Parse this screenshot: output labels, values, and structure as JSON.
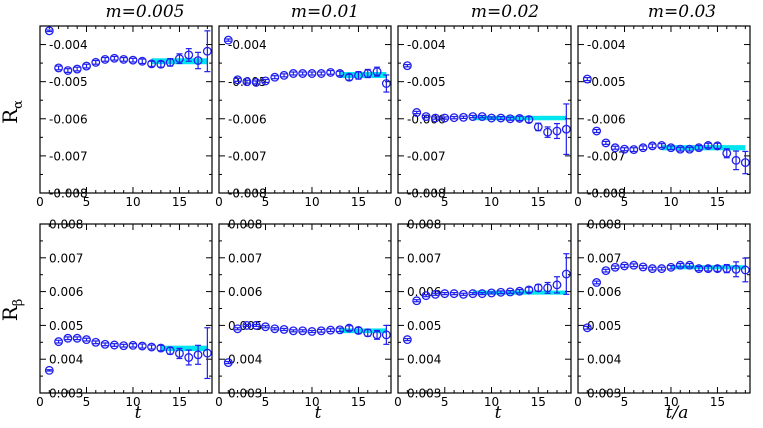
{
  "figure": {
    "column_titles": [
      "m=0.005",
      "m=0.01",
      "m=0.02",
      "m=0.03"
    ],
    "x_labels": [
      "t",
      "t",
      "t",
      "t/a"
    ],
    "row_labels": [
      {
        "main": "R",
        "sub": "α"
      },
      {
        "main": "R",
        "sub": "β"
      }
    ]
  },
  "chart_data": [
    {
      "type": "scatter",
      "row": 0,
      "col": 0,
      "title": "m=0.005",
      "xlabel": "",
      "ylabel": "Rα",
      "xlim": [
        0,
        18.5
      ],
      "ylim": [
        -0.008,
        -0.0035
      ],
      "xticks": [
        0,
        5,
        10,
        15
      ],
      "xtick_labels": [
        "0",
        "5",
        "10",
        "15"
      ],
      "yticks": [
        -0.008,
        -0.007,
        -0.006,
        -0.005,
        -0.004
      ],
      "ytick_labels": [
        "-0.008",
        "-0.007",
        "-0.006",
        "-0.005",
        "-0.004"
      ],
      "points": [
        [
          1,
          -0.00363
        ],
        [
          2,
          -0.00463
        ],
        [
          3,
          -0.0047
        ],
        [
          4,
          -0.00466
        ],
        [
          5,
          -0.00458
        ],
        [
          6,
          -0.00448
        ],
        [
          7,
          -0.0044
        ],
        [
          8,
          -0.00437
        ],
        [
          9,
          -0.0044
        ],
        [
          10,
          -0.00442
        ],
        [
          11,
          -0.00445
        ],
        [
          12,
          -0.00452
        ],
        [
          13,
          -0.00453
        ],
        [
          14,
          -0.00448
        ],
        [
          15,
          -0.00438
        ],
        [
          16,
          -0.00428
        ],
        [
          17,
          -0.00443
        ],
        [
          18,
          -0.00418
        ]
      ],
      "errors": [
        2e-05,
        5e-05,
        5e-05,
        5e-05,
        5e-05,
        5e-05,
        5e-05,
        5e-05,
        5e-05,
        5e-05,
        6e-05,
        7e-05,
        8e-05,
        0.0001,
        0.00013,
        0.00017,
        0.00022,
        0.00055
      ],
      "fit": {
        "x": [
          12,
          18
        ],
        "center": -0.00445,
        "half_width": 8e-05
      }
    },
    {
      "type": "scatter",
      "row": 0,
      "col": 1,
      "title": "m=0.01",
      "xlabel": "",
      "ylabel": "",
      "xlim": [
        0,
        18.5
      ],
      "ylim": [
        -0.008,
        -0.0035
      ],
      "xticks": [
        0,
        5,
        10,
        15
      ],
      "xtick_labels": [
        "0",
        "5",
        "10",
        "15"
      ],
      "yticks": [
        -0.008,
        -0.007,
        -0.006,
        -0.005,
        -0.004
      ],
      "ytick_labels": [
        "-0.008",
        "-0.007",
        "-0.006",
        "-0.005",
        "-0.004"
      ],
      "points": [
        [
          1,
          -0.00388
        ],
        [
          2,
          -0.00495
        ],
        [
          3,
          -0.005
        ],
        [
          4,
          -0.00502
        ],
        [
          5,
          -0.00498
        ],
        [
          6,
          -0.00488
        ],
        [
          7,
          -0.00483
        ],
        [
          8,
          -0.00478
        ],
        [
          9,
          -0.00478
        ],
        [
          10,
          -0.00478
        ],
        [
          11,
          -0.00478
        ],
        [
          12,
          -0.00475
        ],
        [
          13,
          -0.00478
        ],
        [
          14,
          -0.00488
        ],
        [
          15,
          -0.00483
        ],
        [
          16,
          -0.00478
        ],
        [
          17,
          -0.00473
        ],
        [
          18,
          -0.00505
        ]
      ],
      "errors": [
        3e-05,
        4e-05,
        4e-05,
        4e-05,
        4e-05,
        4e-05,
        4e-05,
        4e-05,
        4e-05,
        4e-05,
        4e-05,
        5e-05,
        6e-05,
        8e-05,
        0.0001,
        0.00011,
        0.00012,
        0.00023
      ],
      "fit": {
        "x": [
          13,
          18
        ],
        "center": -0.00482,
        "half_width": 8e-05
      }
    },
    {
      "type": "scatter",
      "row": 0,
      "col": 2,
      "title": "m=0.02",
      "xlabel": "",
      "ylabel": "",
      "xlim": [
        0,
        18.5
      ],
      "ylim": [
        -0.008,
        -0.0035
      ],
      "xticks": [
        0,
        5,
        10,
        15
      ],
      "xtick_labels": [
        "0",
        "5",
        "10",
        "15"
      ],
      "yticks": [
        -0.008,
        -0.007,
        -0.006,
        -0.005,
        -0.004
      ],
      "ytick_labels": [
        "-0.008",
        "-0.007",
        "-0.006",
        "-0.005",
        "-0.004"
      ],
      "points": [
        [
          1,
          -0.00457
        ],
        [
          2,
          -0.00583
        ],
        [
          3,
          -0.00594
        ],
        [
          4,
          -0.00598
        ],
        [
          5,
          -0.00598
        ],
        [
          6,
          -0.00597
        ],
        [
          7,
          -0.00596
        ],
        [
          8,
          -0.00594
        ],
        [
          9,
          -0.00594
        ],
        [
          10,
          -0.00598
        ],
        [
          11,
          -0.00598
        ],
        [
          12,
          -0.006
        ],
        [
          13,
          -0.00599
        ],
        [
          14,
          -0.00602
        ],
        [
          15,
          -0.00622
        ],
        [
          16,
          -0.00636
        ],
        [
          17,
          -0.00633
        ],
        [
          18,
          -0.00628
        ]
      ],
      "errors": [
        3e-05,
        3e-05,
        3e-05,
        3e-05,
        3e-05,
        3e-05,
        3e-05,
        3e-05,
        3e-05,
        3e-05,
        4e-05,
        4e-05,
        6e-05,
        8e-05,
        0.0001,
        0.00014,
        0.0002,
        0.00068
      ],
      "fit": {
        "x": [
          8,
          18
        ],
        "center": -0.00598,
        "half_width": 6e-05
      }
    },
    {
      "type": "scatter",
      "row": 0,
      "col": 3,
      "title": "m=0.03",
      "xlabel": "",
      "ylabel": "",
      "xlim": [
        0,
        18.5
      ],
      "ylim": [
        -0.008,
        -0.0035
      ],
      "xticks": [
        0,
        5,
        10,
        15
      ],
      "xtick_labels": [
        "0",
        "5",
        "10",
        "15"
      ],
      "yticks": [
        -0.008,
        -0.007,
        -0.006,
        -0.005,
        -0.004
      ],
      "ytick_labels": [
        "-0.008",
        "-0.007",
        "-0.006",
        "-0.005",
        "-0.004"
      ],
      "points": [
        [
          1,
          -0.00493
        ],
        [
          2,
          -0.00633
        ],
        [
          3,
          -0.00665
        ],
        [
          4,
          -0.00678
        ],
        [
          5,
          -0.00682
        ],
        [
          6,
          -0.00683
        ],
        [
          7,
          -0.00678
        ],
        [
          8,
          -0.00673
        ],
        [
          9,
          -0.00672
        ],
        [
          10,
          -0.00678
        ],
        [
          11,
          -0.00682
        ],
        [
          12,
          -0.00682
        ],
        [
          13,
          -0.00678
        ],
        [
          14,
          -0.00672
        ],
        [
          15,
          -0.00673
        ],
        [
          16,
          -0.00693
        ],
        [
          17,
          -0.00712
        ],
        [
          18,
          -0.00718
        ]
      ],
      "errors": [
        4e-05,
        4e-05,
        4e-05,
        4e-05,
        4e-05,
        5e-05,
        5e-05,
        5e-05,
        5e-05,
        5e-05,
        5e-05,
        5e-05,
        6e-05,
        6e-05,
        7e-05,
        0.00012,
        0.00025,
        0.0003
      ],
      "fit": {
        "x": [
          9,
          18
        ],
        "center": -0.00678,
        "half_width": 7e-05
      }
    },
    {
      "type": "scatter",
      "row": 1,
      "col": 0,
      "title": "",
      "xlabel": "t",
      "ylabel": "Rβ",
      "xlim": [
        0,
        18.5
      ],
      "ylim": [
        0.003,
        0.008
      ],
      "xticks": [
        0,
        5,
        10,
        15
      ],
      "xtick_labels": [
        "0",
        "5",
        "10",
        "15"
      ],
      "yticks": [
        0.003,
        0.004,
        0.005,
        0.006,
        0.007,
        0.008
      ],
      "ytick_labels": [
        "0.003",
        "0.004",
        "0.005",
        "0.006",
        "0.007",
        "0.008"
      ],
      "points": [
        [
          1,
          0.00367
        ],
        [
          2,
          0.00452
        ],
        [
          3,
          0.00462
        ],
        [
          4,
          0.00462
        ],
        [
          5,
          0.00458
        ],
        [
          6,
          0.0045
        ],
        [
          7,
          0.00444
        ],
        [
          8,
          0.00442
        ],
        [
          9,
          0.0044
        ],
        [
          10,
          0.00441
        ],
        [
          11,
          0.00439
        ],
        [
          12,
          0.00436
        ],
        [
          13,
          0.00433
        ],
        [
          14,
          0.00425
        ],
        [
          15,
          0.00417
        ],
        [
          16,
          0.00405
        ],
        [
          17,
          0.00413
        ],
        [
          18,
          0.00418
        ]
      ],
      "errors": [
        2e-05,
        4e-05,
        4e-05,
        4e-05,
        4e-05,
        4e-05,
        4e-05,
        4e-05,
        4e-05,
        5e-05,
        6e-05,
        6e-05,
        8e-05,
        0.0001,
        0.00015,
        0.00022,
        0.00028,
        0.00075
      ],
      "fit": {
        "x": [
          13,
          18
        ],
        "center": 0.00432,
        "half_width": 8e-05
      }
    },
    {
      "type": "scatter",
      "row": 1,
      "col": 1,
      "title": "",
      "xlabel": "t",
      "ylabel": "",
      "xlim": [
        0,
        18.5
      ],
      "ylim": [
        0.003,
        0.008
      ],
      "xticks": [
        0,
        5,
        10,
        15
      ],
      "xtick_labels": [
        "0",
        "5",
        "10",
        "15"
      ],
      "yticks": [
        0.003,
        0.004,
        0.005,
        0.006,
        0.007,
        0.008
      ],
      "ytick_labels": [
        "0.003",
        "0.004",
        "0.005",
        "0.006",
        "0.007",
        "0.008"
      ],
      "points": [
        [
          1,
          0.0039
        ],
        [
          2,
          0.0049
        ],
        [
          3,
          0.005
        ],
        [
          4,
          0.005
        ],
        [
          5,
          0.00496
        ],
        [
          6,
          0.0049
        ],
        [
          7,
          0.00488
        ],
        [
          8,
          0.00484
        ],
        [
          9,
          0.00484
        ],
        [
          10,
          0.00482
        ],
        [
          11,
          0.00484
        ],
        [
          12,
          0.00486
        ],
        [
          13,
          0.00487
        ],
        [
          14,
          0.00492
        ],
        [
          15,
          0.00485
        ],
        [
          16,
          0.00478
        ],
        [
          17,
          0.00472
        ],
        [
          18,
          0.00472
        ]
      ],
      "errors": [
        3e-05,
        3e-05,
        3e-05,
        3e-05,
        3e-05,
        3e-05,
        3e-05,
        3e-05,
        3e-05,
        3e-05,
        4e-05,
        4e-05,
        5e-05,
        7e-05,
        9e-05,
        0.0001,
        0.00013,
        0.00028
      ],
      "fit": {
        "x": [
          13,
          18
        ],
        "center": 0.00484,
        "half_width": 7e-05
      }
    },
    {
      "type": "scatter",
      "row": 1,
      "col": 2,
      "title": "",
      "xlabel": "t",
      "ylabel": "",
      "xlim": [
        0,
        18.5
      ],
      "ylim": [
        0.003,
        0.008
      ],
      "xticks": [
        0,
        5,
        10,
        15
      ],
      "xtick_labels": [
        "0",
        "5",
        "10",
        "15"
      ],
      "yticks": [
        0.003,
        0.004,
        0.005,
        0.006,
        0.007,
        0.008
      ],
      "ytick_labels": [
        "0.003",
        "0.004",
        "0.005",
        "0.006",
        "0.007",
        "0.008"
      ],
      "points": [
        [
          1,
          0.00458
        ],
        [
          2,
          0.00573
        ],
        [
          3,
          0.00588
        ],
        [
          4,
          0.00592
        ],
        [
          5,
          0.00594
        ],
        [
          6,
          0.00594
        ],
        [
          7,
          0.00592
        ],
        [
          8,
          0.00594
        ],
        [
          9,
          0.00594
        ],
        [
          10,
          0.00596
        ],
        [
          11,
          0.00598
        ],
        [
          12,
          0.00599
        ],
        [
          13,
          0.00601
        ],
        [
          14,
          0.00605
        ],
        [
          15,
          0.00611
        ],
        [
          16,
          0.00611
        ],
        [
          17,
          0.0062
        ],
        [
          18,
          0.00652
        ]
      ],
      "errors": [
        3e-05,
        3e-05,
        3e-05,
        3e-05,
        3e-05,
        3e-05,
        3e-05,
        3e-05,
        3e-05,
        3e-05,
        4e-05,
        4e-05,
        5e-05,
        8e-05,
        0.0001,
        0.00016,
        0.00024,
        0.0006
      ],
      "fit": {
        "x": [
          8,
          18
        ],
        "center": 0.00597,
        "half_width": 6e-05
      }
    },
    {
      "type": "scatter",
      "row": 1,
      "col": 3,
      "title": "",
      "xlabel": "t/a",
      "ylabel": "",
      "xlim": [
        0,
        18.5
      ],
      "ylim": [
        0.003,
        0.008
      ],
      "xticks": [
        0,
        5,
        10,
        15
      ],
      "xtick_labels": [
        "0",
        "5",
        "10",
        "15"
      ],
      "yticks": [
        0.003,
        0.004,
        0.005,
        0.006,
        0.007,
        0.008
      ],
      "ytick_labels": [
        "0.003",
        "0.004",
        "0.005",
        "0.006",
        "0.007",
        "0.008"
      ],
      "points": [
        [
          1,
          0.00493
        ],
        [
          2,
          0.00627
        ],
        [
          3,
          0.00662
        ],
        [
          4,
          0.00672
        ],
        [
          5,
          0.00676
        ],
        [
          6,
          0.00678
        ],
        [
          7,
          0.00673
        ],
        [
          8,
          0.00668
        ],
        [
          9,
          0.00668
        ],
        [
          10,
          0.00672
        ],
        [
          11,
          0.00678
        ],
        [
          12,
          0.00678
        ],
        [
          13,
          0.00668
        ],
        [
          14,
          0.00668
        ],
        [
          15,
          0.00668
        ],
        [
          16,
          0.00668
        ],
        [
          17,
          0.00666
        ],
        [
          18,
          0.00664
        ]
      ],
      "errors": [
        4e-05,
        4e-05,
        4e-05,
        4e-05,
        4e-05,
        4e-05,
        4e-05,
        4e-05,
        4e-05,
        5e-05,
        5e-05,
        5e-05,
        6e-05,
        7e-05,
        8e-05,
        0.00012,
        0.00022,
        0.00035
      ],
      "fit": {
        "x": [
          10,
          18
        ],
        "center": 0.00672,
        "half_width": 6e-05
      }
    }
  ],
  "colors": {
    "marker": "#2020ee",
    "fit_band": "#00e5ee",
    "axis": "#000000",
    "background": "#ffffff"
  }
}
